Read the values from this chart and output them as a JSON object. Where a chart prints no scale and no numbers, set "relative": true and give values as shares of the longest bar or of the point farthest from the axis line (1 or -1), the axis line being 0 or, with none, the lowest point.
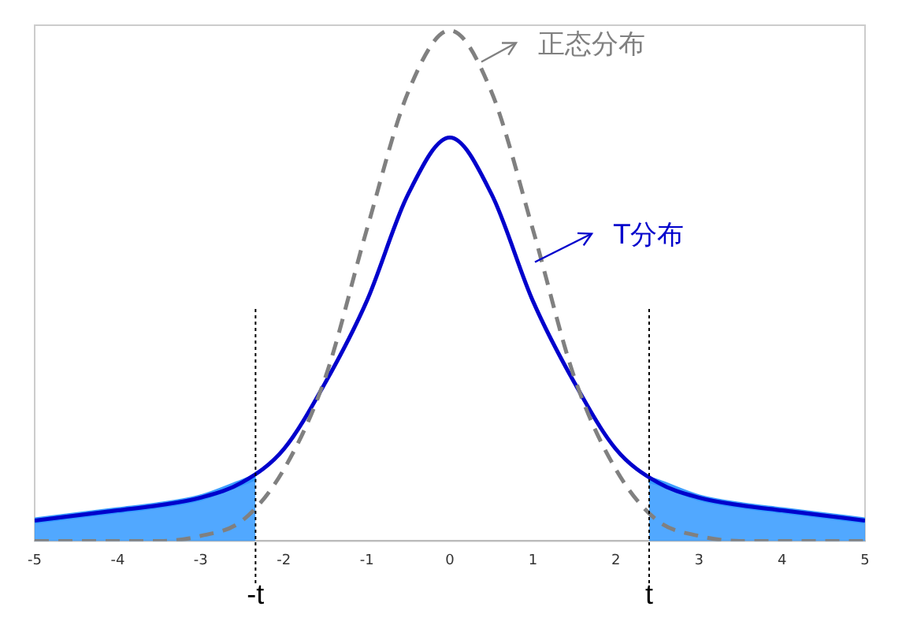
{
  "chart_data": {
    "type": "line",
    "relative": true,
    "xlim": [
      -5,
      5
    ],
    "xticks": [
      -5,
      -4,
      -3,
      -2,
      -1,
      0,
      1,
      2,
      3,
      4,
      5
    ],
    "grid": false,
    "legend": "top right",
    "marker": "none",
    "series": [
      {
        "name": "正态分布",
        "color": "#808080",
        "line_style": "dashed",
        "x": [
          -5,
          -4.5,
          -4,
          -3.5,
          -3,
          -2.5,
          -2,
          -1.5,
          -1,
          -0.5,
          0,
          0.5,
          1,
          1.5,
          2,
          2.5,
          3,
          3.5,
          4,
          4.5,
          5
        ],
        "values": [
          0,
          0,
          0,
          0,
          0.01,
          0.04,
          0.14,
          0.32,
          0.61,
          0.88,
          1,
          0.88,
          0.61,
          0.32,
          0.14,
          0.04,
          0.01,
          0,
          0,
          0,
          0
        ]
      },
      {
        "name": "T分布",
        "color": "#0000cc",
        "line_style": "solid",
        "x": [
          -5,
          -4.5,
          -4,
          -3.5,
          -3,
          -2.5,
          -2,
          -1.5,
          -1,
          -0.5,
          0,
          0.5,
          1,
          1.5,
          2,
          2.5,
          3,
          3.5,
          4,
          4.5,
          5
        ],
        "values": [
          0.04,
          0.05,
          0.06,
          0.07,
          0.085,
          0.115,
          0.18,
          0.31,
          0.47,
          0.68,
          0.79,
          0.68,
          0.47,
          0.31,
          0.18,
          0.115,
          0.085,
          0.07,
          0.06,
          0.05,
          0.04
        ]
      },
      {
        "type": "area",
        "color": "#3399ff",
        "x": [
          -5,
          -4.5,
          -4,
          -3.5,
          -3,
          -2.5,
          -2.34
        ],
        "values": [
          0.04,
          0.05,
          0.06,
          0.07,
          0.085,
          0.115,
          0.125
        ]
      },
      {
        "type": "area",
        "color": "#3399ff",
        "x": [
          2.4,
          2.5,
          3,
          3.5,
          4,
          4.5,
          5
        ],
        "values": [
          0.12,
          0.115,
          0.085,
          0.07,
          0.06,
          0.05,
          0.04
        ]
      }
    ],
    "ref_lines": [
      {
        "axis": "x",
        "value": -2.34,
        "label": "-t",
        "color": "#000000",
        "line_style": "dotted"
      },
      {
        "axis": "x",
        "value": 2.4,
        "label": "t",
        "color": "#000000",
        "line_style": "dotted"
      }
    ]
  }
}
